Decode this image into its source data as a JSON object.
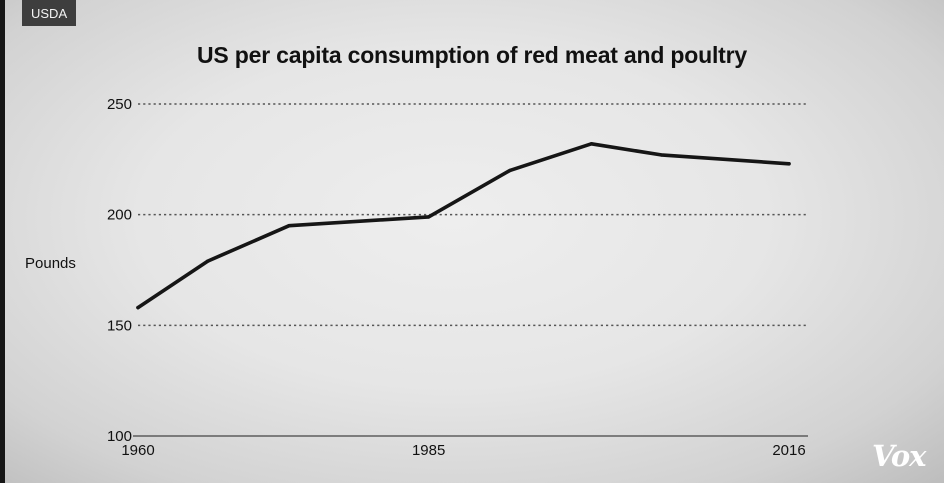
{
  "source_badge": "USDA",
  "logo_text": "Vox",
  "colors": {
    "line": "#161616",
    "grid": "#555555",
    "background": "#e9e9e9",
    "badge": "#3e3e3e"
  },
  "chart_data": {
    "type": "line",
    "title": "US per capita consumption of red meat and poultry",
    "xlabel": "",
    "ylabel": "Pounds",
    "ylim": [
      100,
      250
    ],
    "xlim": [
      1960,
      2016
    ],
    "y_ticks": [
      100,
      150,
      200,
      250
    ],
    "x_ticks": [
      1960,
      1985,
      2016
    ],
    "grid": "horizontal dotted",
    "series": [
      {
        "x": [
          1960,
          1966,
          1973,
          1985,
          1992,
          1999,
          2005,
          2016
        ],
        "y": [
          158,
          179,
          195,
          199,
          220,
          232,
          227,
          223
        ]
      }
    ]
  }
}
